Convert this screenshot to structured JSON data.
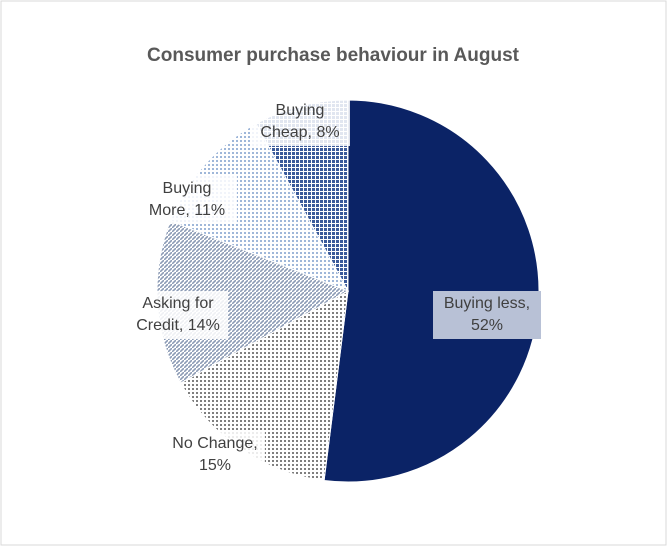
{
  "chart_data": {
    "type": "pie",
    "title": "Consumer purchase behaviour in August",
    "values": [
      52,
      15,
      14,
      11,
      8
    ],
    "value_labels": [
      "Buying less, 52%",
      "No Change, 15%",
      "Asking for Credit, 14%",
      "Buying More, 11%",
      "Buying Cheap, 8%"
    ],
    "colors": [
      "#0b2366",
      "#7f7f7f",
      "#8c9bb5",
      "#9fb7d9",
      "#3a5a9a"
    ]
  }
}
